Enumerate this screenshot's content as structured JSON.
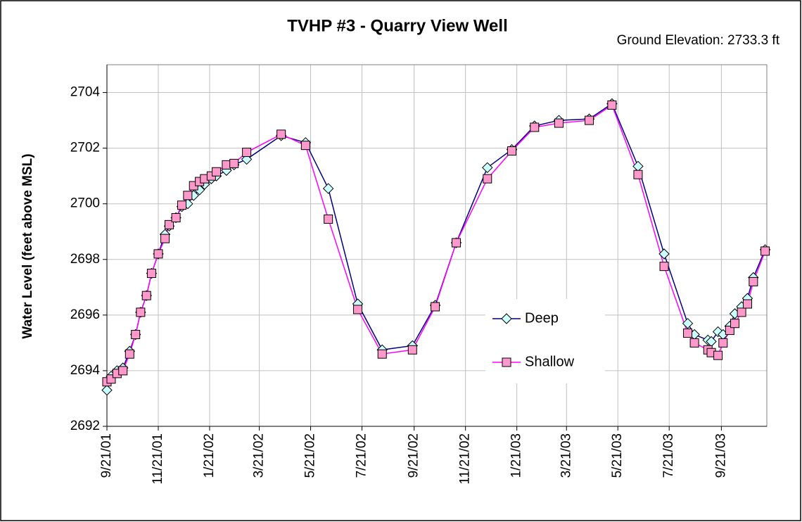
{
  "chart_data": {
    "type": "line",
    "title": "TVHP #3 - Quarry View Well",
    "annotation": "Ground Elevation: 2733.3 ft",
    "y_label": "Water Level (feet above MSL)",
    "x": [
      "2001-09-21",
      "2001-09-26",
      "2001-10-03",
      "2001-10-10",
      "2001-10-18",
      "2001-10-25",
      "2001-10-31",
      "2001-11-07",
      "2001-11-13",
      "2001-11-21",
      "2001-11-29",
      "2001-12-04",
      "2001-12-12",
      "2001-12-19",
      "2001-12-26",
      "2002-01-02",
      "2002-01-09",
      "2002-01-15",
      "2002-01-23",
      "2002-01-29",
      "2002-02-10",
      "2002-02-19",
      "2002-03-06",
      "2002-04-16",
      "2002-05-15",
      "2002-06-11",
      "2002-07-16",
      "2002-08-14",
      "2002-09-19",
      "2002-10-16",
      "2002-11-10",
      "2002-12-17",
      "2003-01-15",
      "2003-02-11",
      "2003-03-12",
      "2003-04-17",
      "2003-05-14",
      "2003-06-14",
      "2003-07-15",
      "2003-08-12",
      "2003-08-20",
      "2003-09-05",
      "2003-09-09",
      "2003-09-17",
      "2003-09-23",
      "2003-10-01",
      "2003-10-07",
      "2003-10-15",
      "2003-10-22",
      "2003-10-29",
      "2003-11-12"
    ],
    "series": [
      {
        "name": "Deep",
        "color": "#000080",
        "marker": "diamond",
        "marker_fill": "#ccffff",
        "values": [
          2693.3,
          2693.8,
          2694.0,
          2694.1,
          2694.7,
          2695.3,
          2696.1,
          2696.7,
          2697.5,
          2698.2,
          2698.9,
          2699.2,
          2699.5,
          2699.9,
          2700.0,
          2700.3,
          2700.5,
          2700.7,
          2700.9,
          2701.0,
          2701.2,
          2701.4,
          2701.6,
          2702.45,
          2702.2,
          2700.55,
          2696.4,
          2694.75,
          2694.9,
          2696.35,
          2698.6,
          2701.3,
          2701.95,
          2702.8,
          2703.0,
          2703.05,
          2703.6,
          2701.35,
          2698.2,
          2695.7,
          2695.3,
          2695.1,
          2695.05,
          2695.4,
          2695.3,
          2695.6,
          2696.05,
          2696.3,
          2696.6,
          2697.35,
          2698.35
        ]
      },
      {
        "name": "Shallow",
        "color": "#ff00ff",
        "marker": "square",
        "marker_fill": "#ff99cc",
        "values": [
          2693.6,
          2693.7,
          2693.9,
          2694.0,
          2694.6,
          2695.3,
          2696.1,
          2696.7,
          2697.5,
          2698.2,
          2698.75,
          2699.25,
          2699.5,
          2699.95,
          2700.3,
          2700.65,
          2700.8,
          2700.9,
          2701.0,
          2701.15,
          2701.4,
          2701.45,
          2701.85,
          2702.5,
          2702.1,
          2699.45,
          2696.2,
          2694.6,
          2694.75,
          2696.3,
          2698.6,
          2700.9,
          2701.9,
          2702.75,
          2702.9,
          2703.0,
          2703.55,
          2701.05,
          2697.75,
          2695.35,
          2695.0,
          2694.75,
          2694.65,
          2694.55,
          2695.0,
          2695.45,
          2695.7,
          2696.1,
          2696.4,
          2697.2,
          2698.3
        ]
      }
    ],
    "xlim": [
      "2001-09-21",
      "2003-11-14"
    ],
    "xticks": [
      {
        "value": "2001-09-21",
        "label": "9/21/01"
      },
      {
        "value": "2001-11-21",
        "label": "11/21/01"
      },
      {
        "value": "2002-01-21",
        "label": "1/21/02"
      },
      {
        "value": "2002-03-21",
        "label": "3/21/02"
      },
      {
        "value": "2002-05-21",
        "label": "5/21/02"
      },
      {
        "value": "2002-07-21",
        "label": "7/21/02"
      },
      {
        "value": "2002-09-21",
        "label": "9/21/02"
      },
      {
        "value": "2002-11-21",
        "label": "11/21/02"
      },
      {
        "value": "2003-01-21",
        "label": "1/21/03"
      },
      {
        "value": "2003-03-21",
        "label": "3/21/03"
      },
      {
        "value": "2003-05-21",
        "label": "5/21/03"
      },
      {
        "value": "2003-07-21",
        "label": "7/21/03"
      },
      {
        "value": "2003-09-21",
        "label": "9/21/03"
      }
    ],
    "ylim": [
      2692,
      2705
    ],
    "yticks": [
      2692,
      2694,
      2696,
      2698,
      2700,
      2702,
      2704
    ],
    "grid": true,
    "legend": "center-right"
  }
}
